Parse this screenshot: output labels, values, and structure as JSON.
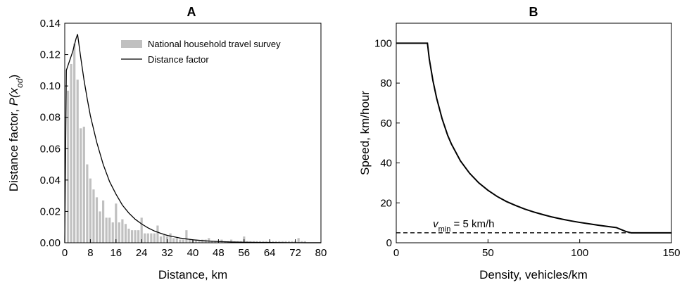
{
  "chart_data": [
    {
      "type": "bar",
      "title": "A",
      "xlabel": "Distance, km",
      "ylabel": "Distance factor, P(x_od)",
      "ylabel_parts": {
        "text": "Distance factor, ",
        "func": "P(x",
        "sub": "od",
        "close": ")"
      },
      "xlim": [
        0,
        80
      ],
      "ylim": [
        0,
        0.14
      ],
      "xticks": [
        0,
        8,
        16,
        24,
        32,
        40,
        48,
        56,
        64,
        72,
        80
      ],
      "yticks": [
        0.0,
        0.02,
        0.04,
        0.06,
        0.08,
        0.1,
        0.12,
        0.14
      ],
      "ytick_labels": [
        "0.00",
        "0.02",
        "0.04",
        "0.06",
        "0.08",
        "0.10",
        "0.12",
        "0.14"
      ],
      "legend_position": "top-right",
      "series": [
        {
          "name": "National household travel survey",
          "kind": "bar",
          "color": "#c0c0c0",
          "x": [
            1,
            2,
            3,
            4,
            5,
            6,
            7,
            8,
            9,
            10,
            11,
            12,
            13,
            14,
            15,
            16,
            17,
            18,
            19,
            20,
            21,
            22,
            23,
            24,
            25,
            26,
            27,
            28,
            29,
            30,
            31,
            32,
            33,
            34,
            35,
            36,
            37,
            38,
            39,
            40,
            41,
            42,
            43,
            44,
            45,
            46,
            47,
            48,
            49,
            50,
            51,
            52,
            53,
            54,
            55,
            56,
            57,
            58,
            59,
            60,
            61,
            62,
            63,
            64,
            65,
            66,
            67,
            68,
            69,
            70,
            71,
            72,
            73,
            74,
            75
          ],
          "values": [
            0.097,
            0.114,
            0.127,
            0.104,
            0.073,
            0.074,
            0.05,
            0.041,
            0.034,
            0.029,
            0.02,
            0.027,
            0.016,
            0.016,
            0.013,
            0.025,
            0.013,
            0.015,
            0.012,
            0.009,
            0.008,
            0.008,
            0.008,
            0.016,
            0.006,
            0.006,
            0.006,
            0.006,
            0.011,
            0.004,
            0.005,
            0.004,
            0.006,
            0.003,
            0.003,
            0.002,
            0.002,
            0.008,
            0.002,
            0.002,
            0.002,
            0.001,
            0.002,
            0.002,
            0.003,
            0.001,
            0.001,
            0.001,
            0.002,
            0.001,
            0.001,
            0.002,
            0.001,
            0.001,
            0.001,
            0.004,
            0.001,
            0.001,
            0.001,
            0.001,
            0.001,
            0.001,
            0.001,
            0.001,
            0.001,
            0.001,
            0.001,
            0.001,
            0.001,
            0.001,
            0.001,
            0.001,
            0.003,
            0.001,
            0.001
          ]
        },
        {
          "name": "Distance factor",
          "kind": "line",
          "color": "#000000",
          "x": [
            0,
            0.5,
            1,
            1.5,
            2,
            2.5,
            3,
            3.5,
            4,
            5,
            6,
            7,
            8,
            10,
            12,
            14,
            16,
            18,
            20,
            22,
            24,
            26,
            28,
            30,
            32,
            36,
            40,
            44,
            48,
            52,
            56,
            60,
            64,
            68,
            72,
            76,
            80
          ],
          "y": [
            0,
            0.11,
            0.113,
            0.116,
            0.119,
            0.122,
            0.126,
            0.13,
            0.133,
            0.118,
            0.104,
            0.092,
            0.081,
            0.064,
            0.05,
            0.039,
            0.031,
            0.024,
            0.019,
            0.015,
            0.012,
            0.0095,
            0.0075,
            0.006,
            0.0047,
            0.003,
            0.0019,
            0.0012,
            0.0008,
            0.0005,
            0.0003,
            0.0002,
            0.00013,
            8e-05,
            5e-05,
            3e-05,
            2e-05
          ]
        }
      ]
    },
    {
      "type": "line",
      "title": "B",
      "xlabel": "Density, vehicles/km",
      "ylabel": "Speed, km/hour",
      "xlim": [
        0,
        150
      ],
      "ylim": [
        0,
        110
      ],
      "xticks": [
        0,
        50,
        100,
        150
      ],
      "yticks": [
        0,
        20,
        40,
        60,
        80,
        100
      ],
      "series": [
        {
          "kind": "line",
          "color": "#000000",
          "x": [
            0,
            17,
            18,
            20,
            22,
            25,
            28,
            30,
            35,
            40,
            45,
            50,
            55,
            60,
            65,
            70,
            75,
            80,
            85,
            90,
            95,
            100,
            105,
            110,
            115,
            120,
            125,
            128,
            130,
            140,
            150
          ],
          "y": [
            100,
            100,
            92.1,
            81.2,
            72.5,
            62.1,
            53.9,
            49.6,
            41.0,
            34.8,
            30.0,
            26.3,
            23.2,
            20.7,
            18.7,
            16.9,
            15.4,
            14.1,
            12.9,
            11.9,
            11.0,
            10.2,
            9.5,
            8.8,
            8.2,
            7.6,
            5.7,
            5,
            5,
            5,
            5
          ]
        },
        {
          "kind": "dashed",
          "color": "#000000",
          "x": [
            0,
            150
          ],
          "y": [
            5,
            5
          ]
        }
      ],
      "annotation": {
        "var": "v",
        "sub": "min",
        "rest": " = 5 km/h",
        "x": 20,
        "y": 5
      }
    }
  ]
}
